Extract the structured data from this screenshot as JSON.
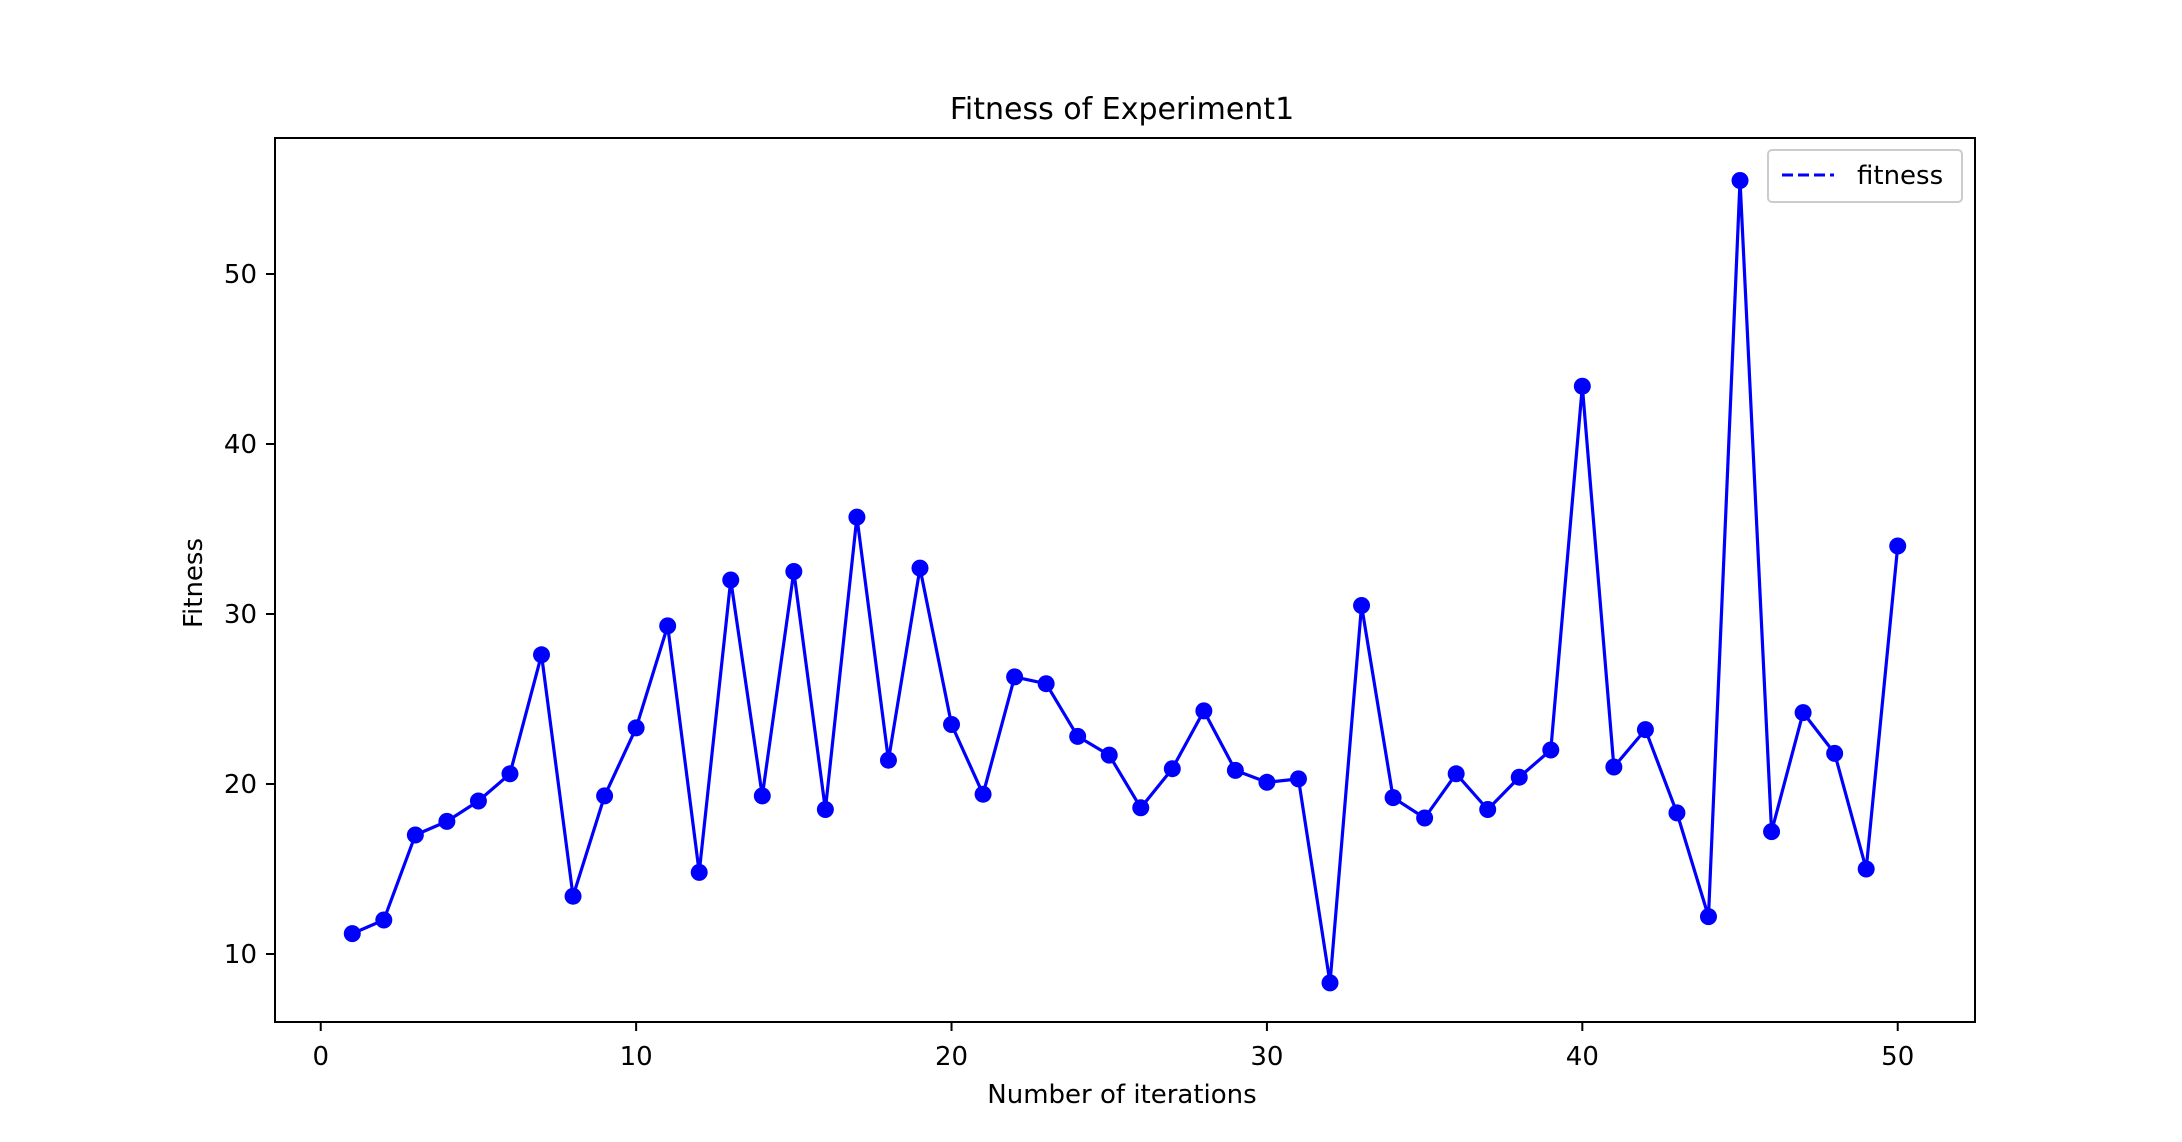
{
  "chart_data": {
    "type": "line",
    "title": "Fitness of Experiment1",
    "xlabel": "Number of iterations",
    "ylabel": "Fitness",
    "xlim": [
      -1.45,
      52.45
    ],
    "ylim": [
      6.0,
      58.0
    ],
    "xticks": [
      0,
      10,
      20,
      30,
      40,
      50
    ],
    "yticks": [
      10,
      20,
      30,
      40,
      50
    ],
    "grid": false,
    "legend": {
      "placement": "upper-right",
      "line_style": "dashed"
    },
    "colors": {
      "series": "#0000ff",
      "axes": "#000000",
      "background": "#ffffff"
    },
    "series": [
      {
        "name": "fitness",
        "marker": "circle",
        "x": [
          1,
          2,
          3,
          4,
          5,
          6,
          7,
          8,
          9,
          10,
          11,
          12,
          13,
          14,
          15,
          16,
          17,
          18,
          19,
          20,
          21,
          22,
          23,
          24,
          25,
          26,
          27,
          28,
          29,
          30,
          31,
          32,
          33,
          34,
          35,
          36,
          37,
          38,
          39,
          40,
          41,
          42,
          43,
          44,
          45,
          46,
          47,
          48,
          49,
          50
        ],
        "values": [
          11.2,
          12.0,
          17.0,
          17.8,
          19.0,
          20.6,
          27.6,
          13.4,
          19.3,
          23.3,
          29.3,
          14.8,
          32.0,
          19.3,
          32.5,
          18.5,
          35.7,
          21.4,
          32.7,
          23.5,
          19.4,
          26.3,
          25.9,
          22.8,
          21.7,
          18.6,
          20.9,
          24.3,
          20.8,
          20.1,
          20.3,
          8.3,
          30.5,
          19.2,
          18.0,
          20.6,
          18.5,
          20.4,
          22.0,
          43.4,
          21.0,
          23.2,
          18.3,
          12.2,
          55.5,
          17.2,
          24.2,
          21.8,
          15.0,
          34.0
        ]
      }
    ]
  }
}
